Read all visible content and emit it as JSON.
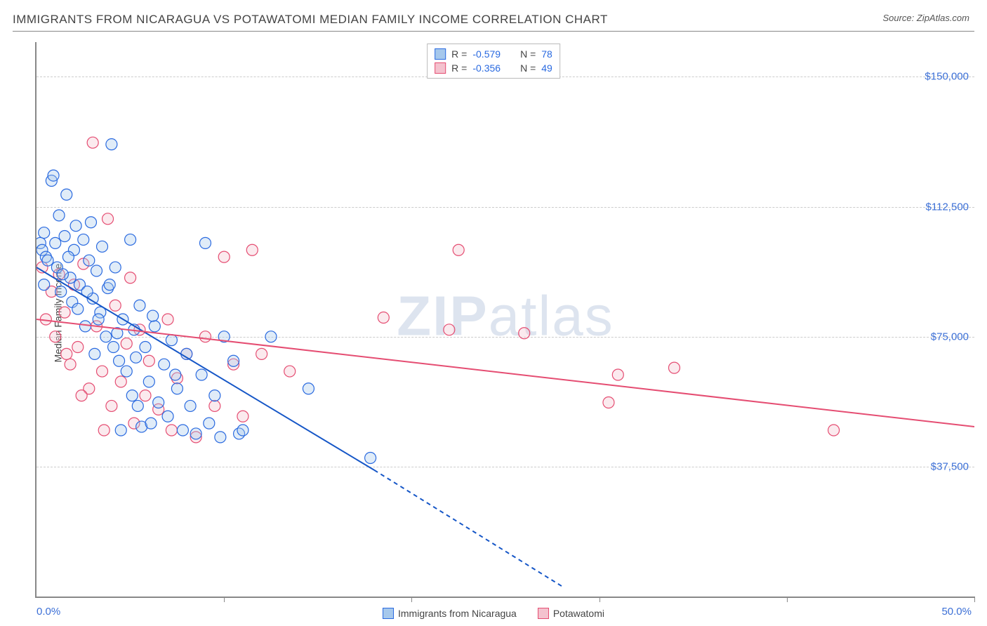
{
  "title": "IMMIGRANTS FROM NICARAGUA VS POTAWATOMI MEDIAN FAMILY INCOME CORRELATION CHART",
  "source_prefix": "Source: ",
  "source_name": "ZipAtlas.com",
  "y_axis_label": "Median Family Income",
  "watermark_bold": "ZIP",
  "watermark_rest": "atlas",
  "chart": {
    "type": "scatter",
    "xlim": [
      0,
      50
    ],
    "ylim": [
      0,
      160000
    ],
    "x_tick_positions": [
      0,
      10,
      20,
      30,
      40,
      50
    ],
    "x_tick_labels": [
      "0.0%",
      "",
      "",
      "",
      "",
      "50.0%"
    ],
    "y_grid_values": [
      37500,
      75000,
      112500,
      150000
    ],
    "y_tick_labels": [
      "$37,500",
      "$75,000",
      "$112,500",
      "$150,000"
    ],
    "background_color": "#ffffff",
    "grid_color": "#cccccc",
    "axis_color": "#888888",
    "tick_label_color": "#3b6fd6",
    "marker_radius": 8,
    "marker_stroke_width": 1.2,
    "marker_fill_opacity": 0.35,
    "regression_line_width": 2
  },
  "series_a": {
    "name": "Immigrants from Nicaragua",
    "fill_color": "#a6c8ec",
    "stroke_color": "#2a6ae0",
    "line_color": "#1556c7",
    "R_label": "R = ",
    "R_value": "-0.579",
    "N_label": "N = ",
    "N_value": "78",
    "regression": {
      "x1": 0,
      "y1": 95000,
      "x2": 18,
      "y2": 36500,
      "x2_ext": 28,
      "y2_ext": 3000
    },
    "points": [
      [
        0.2,
        102000
      ],
      [
        0.3,
        100000
      ],
      [
        0.4,
        105000
      ],
      [
        0.5,
        98000
      ],
      [
        0.4,
        90000
      ],
      [
        0.6,
        97000
      ],
      [
        0.8,
        120000
      ],
      [
        0.9,
        121500
      ],
      [
        1.0,
        102000
      ],
      [
        1.1,
        95000
      ],
      [
        1.2,
        110000
      ],
      [
        1.3,
        88000
      ],
      [
        1.5,
        104000
      ],
      [
        1.6,
        116000
      ],
      [
        1.8,
        92000
      ],
      [
        1.9,
        85000
      ],
      [
        2.0,
        100000
      ],
      [
        2.1,
        107000
      ],
      [
        2.2,
        83000
      ],
      [
        2.3,
        90000
      ],
      [
        2.5,
        103000
      ],
      [
        2.6,
        78000
      ],
      [
        2.8,
        97000
      ],
      [
        2.9,
        108000
      ],
      [
        3.0,
        86000
      ],
      [
        3.1,
        70000
      ],
      [
        3.2,
        94000
      ],
      [
        3.4,
        82000
      ],
      [
        3.5,
        101000
      ],
      [
        3.7,
        75000
      ],
      [
        3.8,
        89000
      ],
      [
        4.0,
        130500
      ],
      [
        4.1,
        72000
      ],
      [
        4.2,
        95000
      ],
      [
        4.4,
        68000
      ],
      [
        4.5,
        48000
      ],
      [
        4.6,
        80000
      ],
      [
        4.8,
        65000
      ],
      [
        5.0,
        103000
      ],
      [
        5.1,
        58000
      ],
      [
        5.2,
        77000
      ],
      [
        5.4,
        55000
      ],
      [
        5.5,
        84000
      ],
      [
        5.6,
        49000
      ],
      [
        5.8,
        72000
      ],
      [
        6.0,
        62000
      ],
      [
        6.1,
        50000
      ],
      [
        6.3,
        78000
      ],
      [
        6.5,
        56000
      ],
      [
        6.8,
        67000
      ],
      [
        7.0,
        52000
      ],
      [
        7.2,
        74000
      ],
      [
        7.5,
        60000
      ],
      [
        7.8,
        48000
      ],
      [
        8.0,
        70000
      ],
      [
        8.2,
        55000
      ],
      [
        8.5,
        47000
      ],
      [
        8.8,
        64000
      ],
      [
        9.0,
        102000
      ],
      [
        9.2,
        50000
      ],
      [
        9.5,
        58000
      ],
      [
        9.8,
        46000
      ],
      [
        10.0,
        75000
      ],
      [
        10.5,
        68000
      ],
      [
        10.8,
        47000
      ],
      [
        11.0,
        48000
      ],
      [
        12.5,
        75000
      ],
      [
        14.5,
        60000
      ],
      [
        17.8,
        40000
      ],
      [
        1.4,
        93000
      ],
      [
        2.7,
        88000
      ],
      [
        3.3,
        80000
      ],
      [
        3.9,
        90000
      ],
      [
        4.3,
        76000
      ],
      [
        5.3,
        69000
      ],
      [
        6.2,
        81000
      ],
      [
        7.4,
        64000
      ],
      [
        1.7,
        98000
      ]
    ]
  },
  "series_b": {
    "name": "Potawatomi",
    "fill_color": "#f4c2ce",
    "stroke_color": "#e54d72",
    "line_color": "#e54d72",
    "R_label": "R = ",
    "R_value": "-0.356",
    "N_label": "N = ",
    "N_value": "49",
    "regression": {
      "x1": 0,
      "y1": 80000,
      "x2": 50,
      "y2": 49000
    },
    "points": [
      [
        0.3,
        95000
      ],
      [
        0.5,
        80000
      ],
      [
        0.8,
        88000
      ],
      [
        1.0,
        75000
      ],
      [
        1.2,
        93000
      ],
      [
        1.5,
        82000
      ],
      [
        1.8,
        67000
      ],
      [
        2.0,
        90000
      ],
      [
        2.2,
        72000
      ],
      [
        2.5,
        96000
      ],
      [
        2.8,
        60000
      ],
      [
        3.0,
        131000
      ],
      [
        3.2,
        78000
      ],
      [
        3.5,
        65000
      ],
      [
        3.8,
        109000
      ],
      [
        4.0,
        55000
      ],
      [
        4.2,
        84000
      ],
      [
        4.5,
        62000
      ],
      [
        4.8,
        73000
      ],
      [
        5.0,
        92000
      ],
      [
        5.2,
        50000
      ],
      [
        5.5,
        77000
      ],
      [
        5.8,
        58000
      ],
      [
        6.0,
        68000
      ],
      [
        6.5,
        54000
      ],
      [
        7.0,
        80000
      ],
      [
        7.2,
        48000
      ],
      [
        7.5,
        63000
      ],
      [
        8.0,
        70000
      ],
      [
        8.5,
        46000
      ],
      [
        9.0,
        75000
      ],
      [
        9.5,
        55000
      ],
      [
        10.0,
        98000
      ],
      [
        10.5,
        67000
      ],
      [
        11.0,
        52000
      ],
      [
        11.5,
        100000
      ],
      [
        12.0,
        70000
      ],
      [
        13.5,
        65000
      ],
      [
        18.5,
        80500
      ],
      [
        22.0,
        77000
      ],
      [
        22.5,
        100000
      ],
      [
        26.0,
        76000
      ],
      [
        30.5,
        56000
      ],
      [
        31.0,
        64000
      ],
      [
        34.0,
        66000
      ],
      [
        42.5,
        48000
      ],
      [
        3.6,
        48000
      ],
      [
        2.4,
        58000
      ],
      [
        1.6,
        70000
      ]
    ]
  }
}
